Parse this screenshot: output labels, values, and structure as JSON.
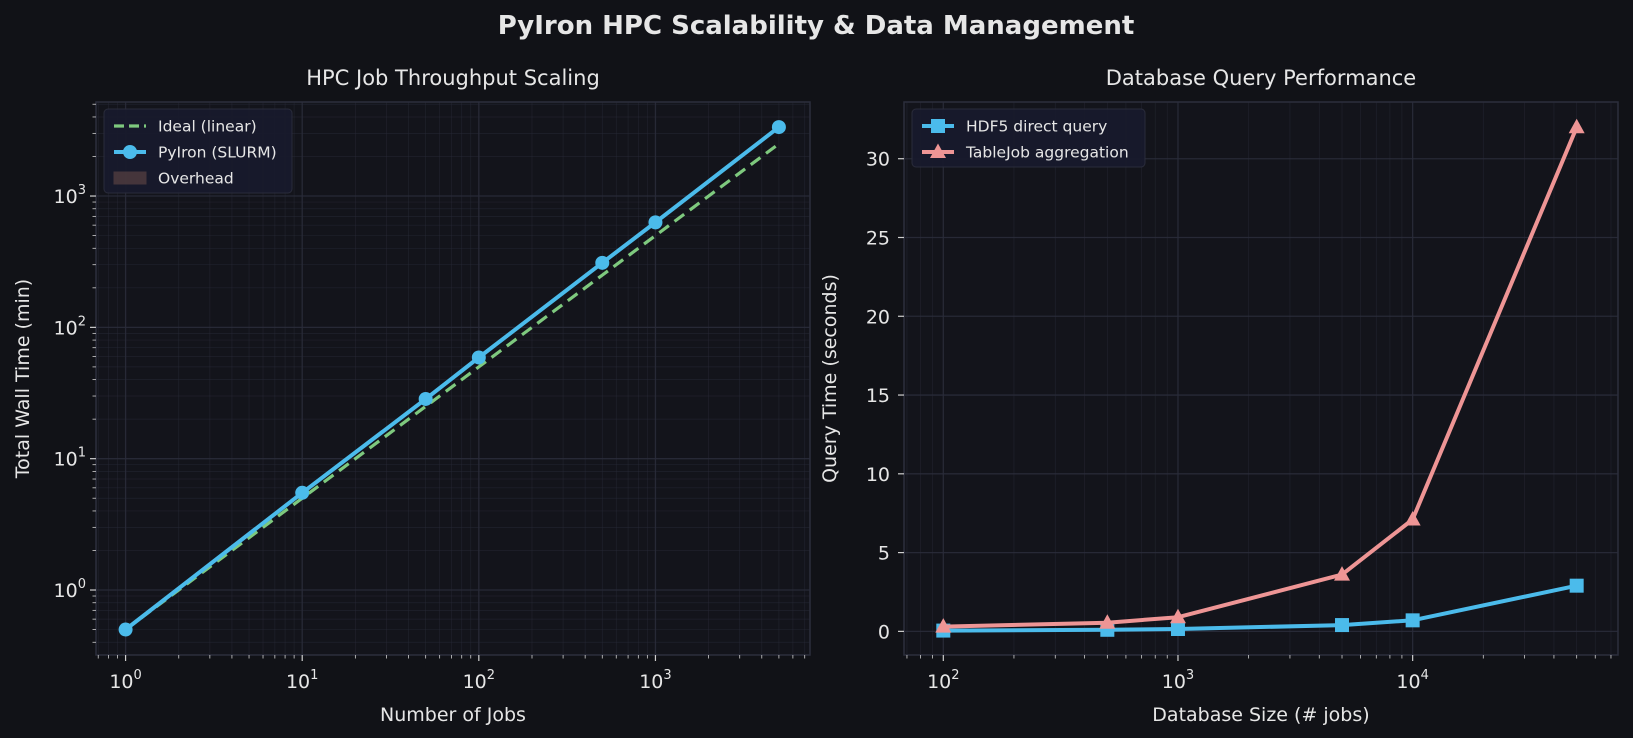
{
  "suptitle": "PyIron HPC Scalability & Data Management",
  "colors": {
    "background": "#111217",
    "axes_bg": "#13141b",
    "spine": "#2c2e3d",
    "grid": "#2a2c3a",
    "text": "#e6e6e6",
    "ideal": "#7ec97e",
    "pyiron": "#4bbbeb",
    "overhead": "#9a6a5a",
    "hdf5": "#4bbbeb",
    "tablejob": "#ee9595",
    "legend_bg": "#181a2c"
  },
  "chart_data": [
    {
      "type": "line",
      "title": "HPC Job Throughput Scaling",
      "xlabel": "Number of Jobs",
      "ylabel": "Total Wall Time (min)",
      "xscale": "log",
      "yscale": "log",
      "xlim": [
        0.68,
        7500
      ],
      "ylim": [
        0.32,
        5200
      ],
      "grid": true,
      "legend_position": "top-left",
      "x": [
        1,
        10,
        50,
        100,
        500,
        1000,
        5000
      ],
      "series": [
        {
          "name": "Ideal (linear)",
          "style": "dashed",
          "color_key": "ideal",
          "values": [
            0.5,
            5.0,
            25,
            50,
            250,
            500,
            2500
          ]
        },
        {
          "name": "PyIron (SLURM)",
          "style": "solid-marker-circle",
          "color_key": "pyiron",
          "values": [
            0.5,
            5.5,
            28.5,
            59,
            310,
            630,
            3350
          ]
        }
      ],
      "legend": [
        {
          "label": "Ideal (linear)",
          "kind": "dashed-line",
          "color_key": "ideal"
        },
        {
          "label": "PyIron (SLURM)",
          "kind": "line-circle",
          "color_key": "pyiron"
        },
        {
          "label": "Overhead",
          "kind": "patch",
          "color_key": "overhead"
        }
      ],
      "x_ticks": [
        {
          "base": "10",
          "exp": "0",
          "value": 1
        },
        {
          "base": "10",
          "exp": "1",
          "value": 10
        },
        {
          "base": "10",
          "exp": "2",
          "value": 100
        },
        {
          "base": "10",
          "exp": "3",
          "value": 1000
        }
      ],
      "y_ticks": [
        {
          "base": "10",
          "exp": "0",
          "value": 1
        },
        {
          "base": "10",
          "exp": "1",
          "value": 10
        },
        {
          "base": "10",
          "exp": "2",
          "value": 100
        },
        {
          "base": "10",
          "exp": "3",
          "value": 1000
        }
      ]
    },
    {
      "type": "line",
      "title": "Database Query Performance",
      "xlabel": "Database Size (# jobs)",
      "ylabel": "Query Time (seconds)",
      "xscale": "log",
      "yscale": "linear",
      "xlim": [
        68,
        75000
      ],
      "ylim": [
        -1.5,
        33.6
      ],
      "grid": true,
      "legend_position": "top-left",
      "x": [
        100,
        500,
        1000,
        5000,
        10000,
        50000
      ],
      "series": [
        {
          "name": "HDF5 direct query",
          "style": "solid-marker-square",
          "color_key": "hdf5",
          "values": [
            0.05,
            0.1,
            0.15,
            0.4,
            0.7,
            2.9
          ]
        },
        {
          "name": "TableJob aggregation",
          "style": "solid-marker-triangle",
          "color_key": "tablejob",
          "values": [
            0.3,
            0.55,
            0.9,
            3.6,
            7.1,
            32.0
          ]
        }
      ],
      "legend": [
        {
          "label": "HDF5 direct query",
          "kind": "line-square",
          "color_key": "hdf5"
        },
        {
          "label": "TableJob aggregation",
          "kind": "line-triangle",
          "color_key": "tablejob"
        }
      ],
      "x_ticks": [
        {
          "base": "10",
          "exp": "2",
          "value": 100
        },
        {
          "base": "10",
          "exp": "3",
          "value": 1000
        },
        {
          "base": "10",
          "exp": "4",
          "value": 10000
        }
      ],
      "y_ticks": [
        {
          "label": "0",
          "value": 0
        },
        {
          "label": "5",
          "value": 5
        },
        {
          "label": "10",
          "value": 10
        },
        {
          "label": "15",
          "value": 15
        },
        {
          "label": "20",
          "value": 20
        },
        {
          "label": "25",
          "value": 25
        },
        {
          "label": "30",
          "value": 30
        }
      ]
    }
  ]
}
